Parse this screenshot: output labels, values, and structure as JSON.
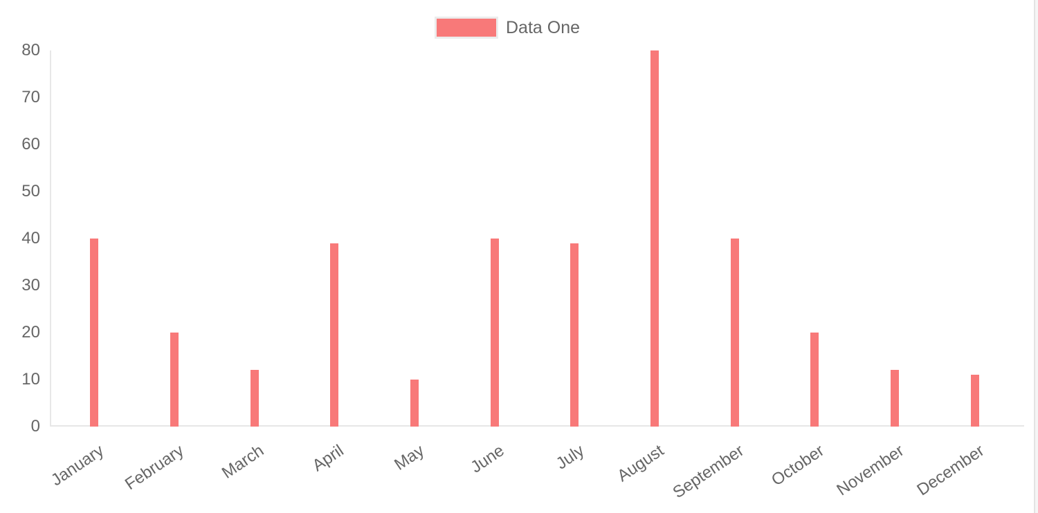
{
  "chart_data": {
    "type": "bar",
    "title": "",
    "xlabel": "",
    "ylabel": "",
    "categories": [
      "January",
      "February",
      "March",
      "April",
      "May",
      "June",
      "July",
      "August",
      "September",
      "October",
      "November",
      "December"
    ],
    "series": [
      {
        "name": "Data One",
        "color": "#f87979",
        "values": [
          40,
          20,
          12,
          39,
          10,
          40,
          39,
          80,
          40,
          20,
          12,
          11
        ]
      }
    ],
    "ylim": [
      0,
      80
    ],
    "yticks": [
      0,
      10,
      20,
      30,
      40,
      50,
      60,
      70,
      80
    ],
    "grid": "off",
    "axis_lines": "left-and-bottom",
    "axis_line_color": "#e7e7e7",
    "tick_label_color": "#666666",
    "legend_position": "top-center",
    "x_label_rotation_deg": -34
  },
  "legend": {
    "label": "Data One",
    "swatch_color": "#f87979",
    "swatch_border_color": "#ececec"
  },
  "page": {
    "background_color": "#ffffff",
    "scrollbar_edge_color": "#e3e3e3",
    "scrollbar_track_color": "#f5f5f5"
  }
}
